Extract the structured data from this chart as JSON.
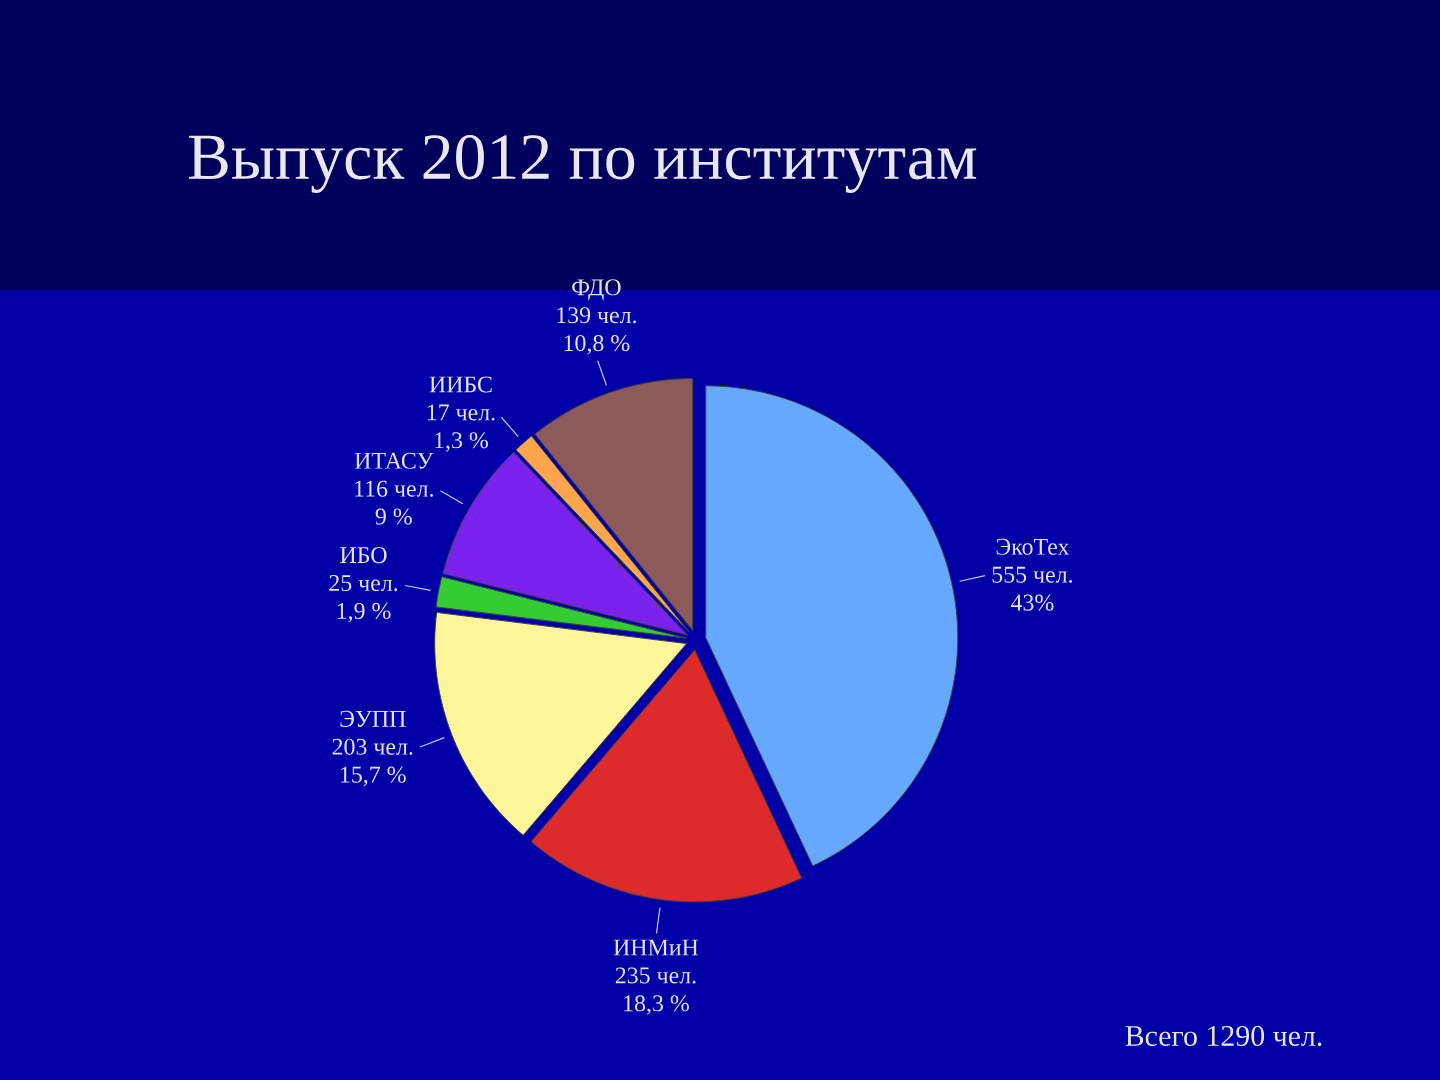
{
  "chart_data": {
    "type": "pie",
    "title": "Выпуск 2012 по институтам",
    "categories": [
      "ЭкоТех",
      "ИНМиН",
      "ЭУПП",
      "ИБО",
      "ИТАСУ",
      "ИИБС",
      "ФДО"
    ],
    "values": [
      555,
      235,
      203,
      25,
      116,
      17,
      139
    ],
    "colors": [
      "#66a8ff",
      "#dd2b2b",
      "#fff59a",
      "#33cc33",
      "#7a22ee",
      "#ffa64d",
      "#8c5a5a"
    ],
    "value_labels": [
      "555 чел.",
      "235 чел.",
      "203 чел.",
      "25 чел.",
      "116 чел.",
      "17 чел.",
      "139 чел."
    ],
    "annotations": [
      "43%",
      "18,3 %",
      "15,7 %",
      "1,9 %",
      "9 %",
      "1,3 %",
      "10,8 %",
      "Всего 1290 чел."
    ]
  }
}
